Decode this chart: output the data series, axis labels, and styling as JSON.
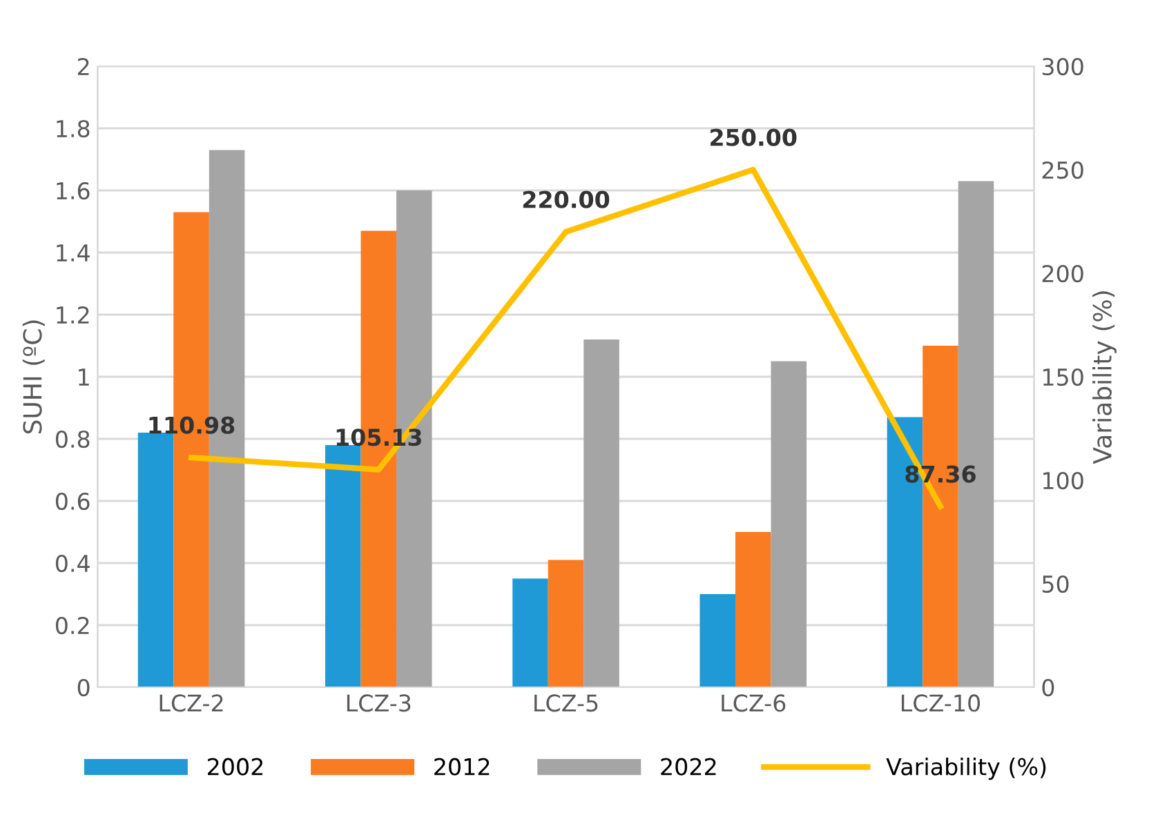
{
  "chart_data": {
    "type": "bar",
    "ylabel": "SUHI (ºC)",
    "y2label": "Variability (%)",
    "categories": [
      "LCZ-2",
      "LCZ-3",
      "LCZ-5",
      "LCZ-6",
      "LCZ-10"
    ],
    "series": [
      {
        "name": "2002",
        "color": "#1f9ad6",
        "values": [
          0.82,
          0.78,
          0.35,
          0.3,
          0.87
        ]
      },
      {
        "name": "2012",
        "color": "#f97b22",
        "values": [
          1.53,
          1.47,
          0.41,
          0.5,
          1.1
        ]
      },
      {
        "name": "2022",
        "color": "#a5a5a5",
        "values": [
          1.73,
          1.6,
          1.12,
          1.05,
          1.63
        ]
      },
      {
        "name": "Variability (%)",
        "type": "line",
        "axis": "y2",
        "color": "#ffc000",
        "values": [
          110.98,
          105.13,
          220.0,
          250.0,
          87.36
        ],
        "value_labels": [
          "110.98",
          "105.13",
          "220.00",
          "250.00",
          "87.36"
        ]
      }
    ],
    "ylim": [
      0,
      2
    ],
    "yticks": [
      0,
      0.2,
      0.4,
      0.6,
      0.8,
      1,
      1.2,
      1.4,
      1.6,
      1.8,
      2
    ],
    "y2lim": [
      0,
      300
    ],
    "y2ticks": [
      0,
      50,
      100,
      150,
      200,
      250,
      300
    ],
    "grid": "y",
    "legend": "bottom",
    "marker": "none",
    "line_style": "solid"
  }
}
